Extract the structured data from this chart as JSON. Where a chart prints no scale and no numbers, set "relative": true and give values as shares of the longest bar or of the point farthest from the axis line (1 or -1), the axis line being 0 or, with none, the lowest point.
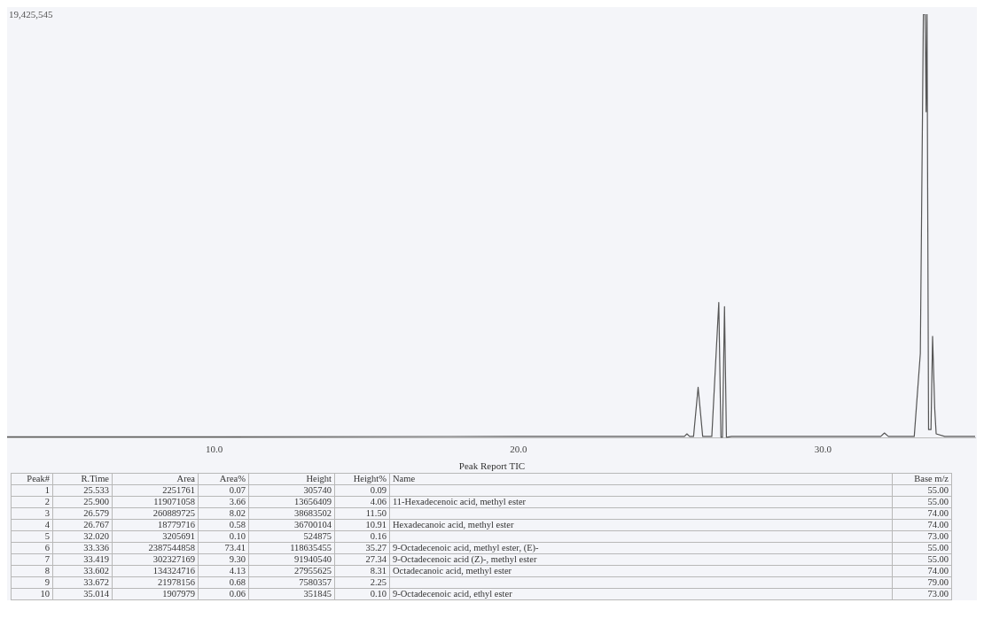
{
  "chart_data": {
    "type": "line",
    "relative": true,
    "x": [
      3.2,
      10,
      20,
      25.3,
      25.45,
      25.533,
      25.62,
      25.75,
      25.9,
      26.05,
      26.35,
      26.579,
      26.65,
      26.7,
      26.767,
      26.83,
      27,
      31.9,
      32.02,
      32.15,
      33,
      33.2,
      33.3,
      33.36,
      33.39,
      33.419,
      33.47,
      33.55,
      33.602,
      33.672,
      33.72,
      34,
      35
    ],
    "series": [
      {
        "color": "#555555",
        "values": [
          0.003,
          0.003,
          0.004,
          0.004,
          0.004,
          0.01,
          0.004,
          0.004,
          0.12,
          0.004,
          0.004,
          0.32,
          0.002,
          0.002,
          0.31,
          0.002,
          0.004,
          0.004,
          0.012,
          0.004,
          0.004,
          0.2,
          1,
          1,
          0.77,
          1,
          0.02,
          0.02,
          0.24,
          0.07,
          0.01,
          0.004,
          0.004
        ]
      }
    ],
    "xlim": [
      3.2,
      35
    ],
    "xticks": [
      {
        "value": 10,
        "label": "10.0"
      },
      {
        "value": 20,
        "label": "20.0"
      },
      {
        "value": 30,
        "label": "30.0"
      }
    ],
    "grid": false,
    "legend": false,
    "marker": "none",
    "line_style": "solid",
    "annotations": [
      "19,425,545",
      "Peak Report TIC",
      "Peak#",
      "R.Time",
      "Area",
      "Area%",
      "Height",
      "Height%",
      "Name",
      "Base m/z",
      "1",
      "25.533",
      "2251761",
      "0.07",
      "305740",
      "0.09",
      null,
      "55.00",
      "2",
      "25.900",
      "119071058",
      "3.66",
      "13656409",
      "4.06",
      "11-Hexadecenoic acid, methyl ester",
      "55.00",
      "3",
      "26.579",
      "260889725",
      "8.02",
      "38683502",
      "11.50",
      null,
      "74.00",
      "4",
      "26.767",
      "18779716",
      "0.58",
      "36700104",
      "10.91",
      "Hexadecanoic acid, methyl ester",
      "74.00",
      "5",
      "32.020",
      "3205691",
      "0.10",
      "524875",
      "0.16",
      null,
      "73.00",
      "6",
      "33.336",
      "2387544858",
      "73.41",
      "118635455",
      "35.27",
      "9-Octadecenoic acid, methyl ester, (E)-",
      "55.00",
      "7",
      "33.419",
      "302327169",
      "9.30",
      "91940540",
      "27.34",
      "9-Octadecenoic acid (Z)-, methyl ester",
      "55.00",
      "8",
      "33.602",
      "134324716",
      "4.13",
      "27955625",
      "8.31",
      "Octadecanoic acid, methyl ester",
      "74.00",
      "9",
      "33.672",
      "21978156",
      "0.68",
      "7580357",
      "2.25",
      null,
      "79.00",
      "10",
      "35.014",
      "1907979",
      "0.06",
      "351845",
      "0.10",
      "9-Octadecenoic acid, ethyl ester",
      "73.00"
    ]
  }
}
